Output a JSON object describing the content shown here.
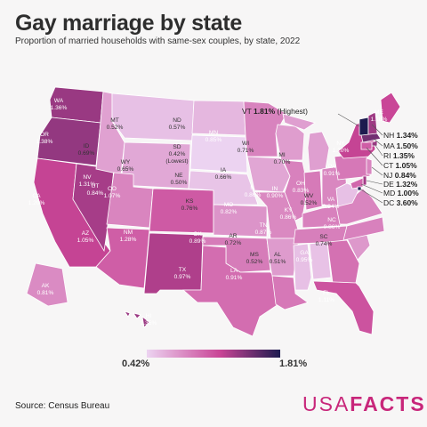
{
  "title": "Gay marriage by state",
  "subtitle": "Proportion of married households with same-sex couples, by state, 2022",
  "legend": {
    "min_label": "0.42%",
    "max_label": "1.81%",
    "color_low": "#ecd3f1",
    "color_mid": "#c94596",
    "color_high": "#1d1b4f"
  },
  "source": "Source: Census Bureau",
  "logo": {
    "part1": "USA",
    "part2": "FACTS",
    "color": "#c8267a"
  },
  "highest_note": "(Highest)",
  "lowest_note": "(Lowest)",
  "states": [
    {
      "abbr": "WA",
      "value": "1.36%"
    },
    {
      "abbr": "OR",
      "value": "1.38%"
    },
    {
      "abbr": "CA",
      "value": "1.20%"
    },
    {
      "abbr": "NV",
      "value": "1.31%"
    },
    {
      "abbr": "ID",
      "value": "0.69%"
    },
    {
      "abbr": "MT",
      "value": "0.52%"
    },
    {
      "abbr": "WY",
      "value": "0.65%"
    },
    {
      "abbr": "UT",
      "value": "0.84%"
    },
    {
      "abbr": "AZ",
      "value": "1.05%"
    },
    {
      "abbr": "CO",
      "value": "1.07%"
    },
    {
      "abbr": "NM",
      "value": "1.28%"
    },
    {
      "abbr": "ND",
      "value": "0.57%"
    },
    {
      "abbr": "SD",
      "value": "0.42%"
    },
    {
      "abbr": "NE",
      "value": "0.50%"
    },
    {
      "abbr": "KS",
      "value": "0.76%"
    },
    {
      "abbr": "OK",
      "value": "0.89%"
    },
    {
      "abbr": "TX",
      "value": "0.97%"
    },
    {
      "abbr": "MN",
      "value": "0.85%"
    },
    {
      "abbr": "IA",
      "value": "0.66%"
    },
    {
      "abbr": "MO",
      "value": "0.82%"
    },
    {
      "abbr": "AR",
      "value": "0.72%"
    },
    {
      "abbr": "LA",
      "value": "0.91%"
    },
    {
      "abbr": "WI",
      "value": "0.71%"
    },
    {
      "abbr": "IL",
      "value": "0.86%"
    },
    {
      "abbr": "MI",
      "value": "0.70%"
    },
    {
      "abbr": "IN",
      "value": "0.90%"
    },
    {
      "abbr": "OH",
      "value": "0.83%"
    },
    {
      "abbr": "KY",
      "value": "0.86%"
    },
    {
      "abbr": "TN",
      "value": "0.87%"
    },
    {
      "abbr": "MS",
      "value": "0.52%"
    },
    {
      "abbr": "AL",
      "value": "0.51%"
    },
    {
      "abbr": "GA",
      "value": "0.95%"
    },
    {
      "abbr": "FL",
      "value": "1.11%"
    },
    {
      "abbr": "SC",
      "value": "0.74%"
    },
    {
      "abbr": "NC",
      "value": "0.86%"
    },
    {
      "abbr": "VA",
      "value": "0.84%"
    },
    {
      "abbr": "WV",
      "value": "0.52%"
    },
    {
      "abbr": "PA",
      "value": "0.91%"
    },
    {
      "abbr": "NY",
      "value": "1.20%"
    },
    {
      "abbr": "ME",
      "value": "1.18%"
    },
    {
      "abbr": "AK",
      "value": "0.81%"
    },
    {
      "abbr": "HI",
      "value": "1.35%"
    },
    {
      "abbr": "VT",
      "value": "1.81%"
    },
    {
      "abbr": "NH",
      "value": "1.34%"
    },
    {
      "abbr": "MA",
      "value": "1.50%"
    },
    {
      "abbr": "RI",
      "value": "1.35%"
    },
    {
      "abbr": "CT",
      "value": "1.05%"
    },
    {
      "abbr": "NJ",
      "value": "0.84%"
    },
    {
      "abbr": "DE",
      "value": "1.32%"
    },
    {
      "abbr": "MD",
      "value": "1.00%"
    },
    {
      "abbr": "DC",
      "value": "3.60%"
    }
  ]
}
